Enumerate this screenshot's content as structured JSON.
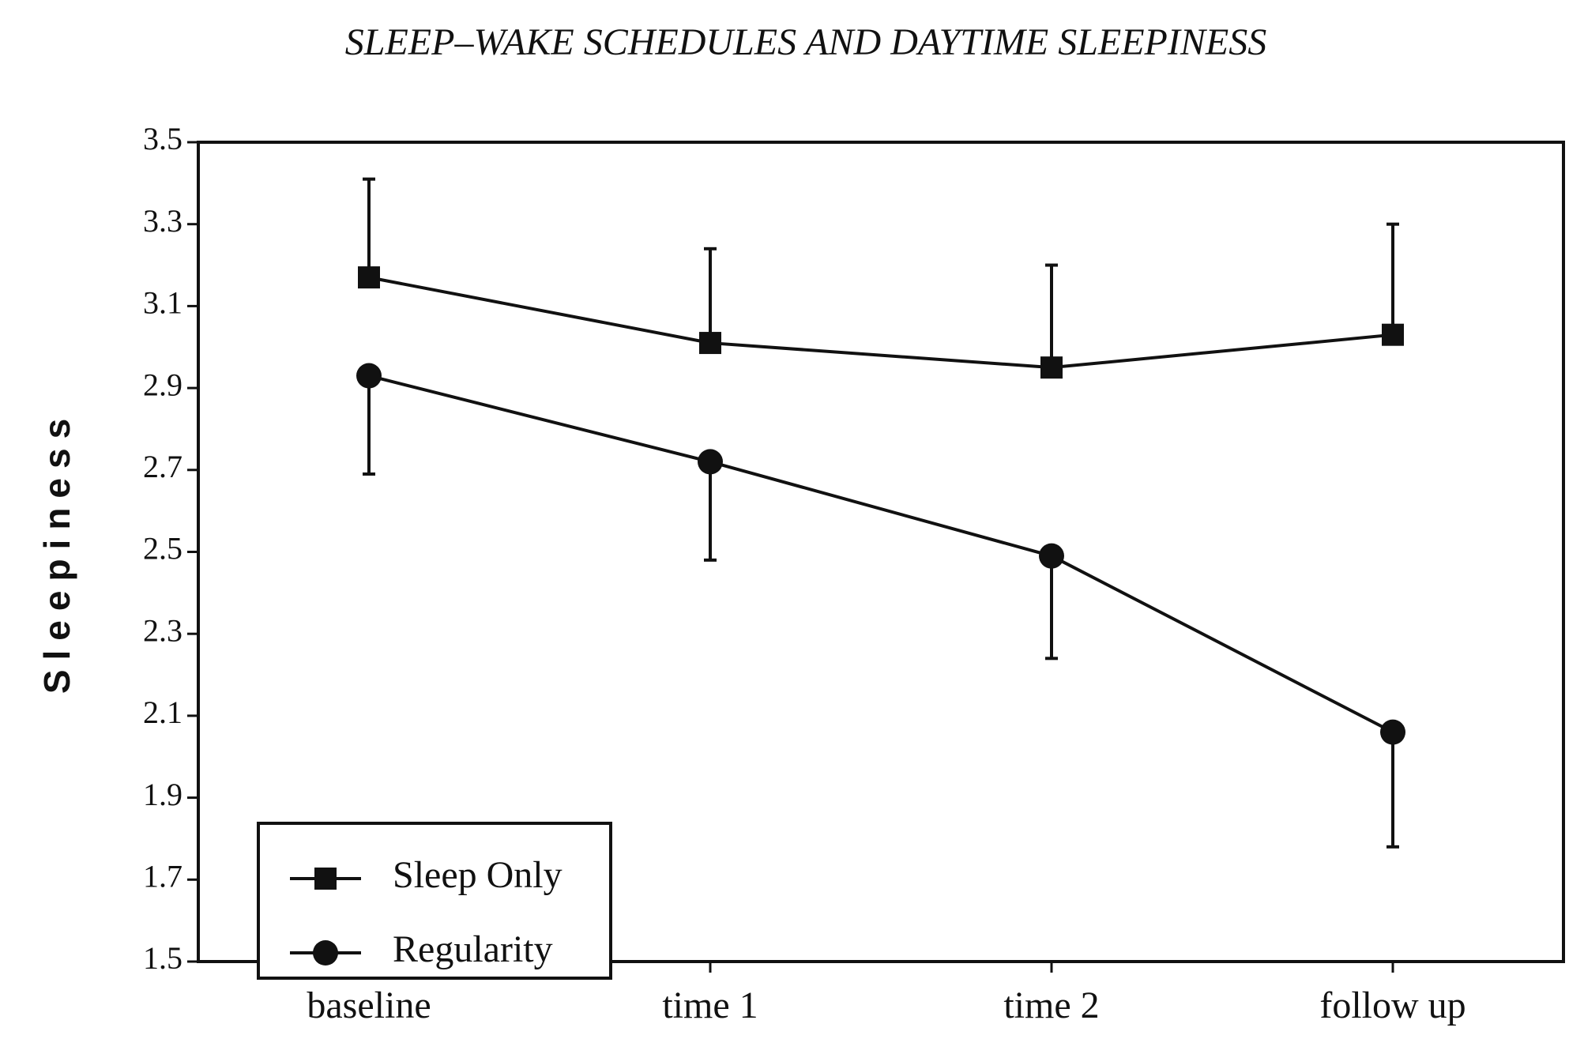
{
  "chart_data": {
    "type": "line",
    "title": "SLEEP–WAKE SCHEDULES AND DAYTIME SLEEPINESS",
    "y_label": "Sleepiness",
    "categories": [
      "baseline",
      "time 1",
      "time 2",
      "follow up"
    ],
    "series": [
      {
        "name": "Sleep Only",
        "color": "#111111",
        "marker": "square",
        "error_direction": "up",
        "values": [
          3.17,
          3.01,
          2.95,
          3.03
        ],
        "errors": [
          0.24,
          0.23,
          0.25,
          0.27
        ]
      },
      {
        "name": "Regularity",
        "color": "#111111",
        "marker": "circle",
        "error_direction": "down",
        "values": [
          2.93,
          2.72,
          2.49,
          2.06
        ],
        "errors": [
          0.24,
          0.24,
          0.25,
          0.28
        ]
      }
    ],
    "ylim": [
      1.5,
      3.5
    ],
    "yticks": [
      1.5,
      1.7,
      1.9,
      2.1,
      2.3,
      2.5,
      2.7,
      2.9,
      3.1,
      3.3,
      3.5
    ],
    "legend": "lower left"
  }
}
